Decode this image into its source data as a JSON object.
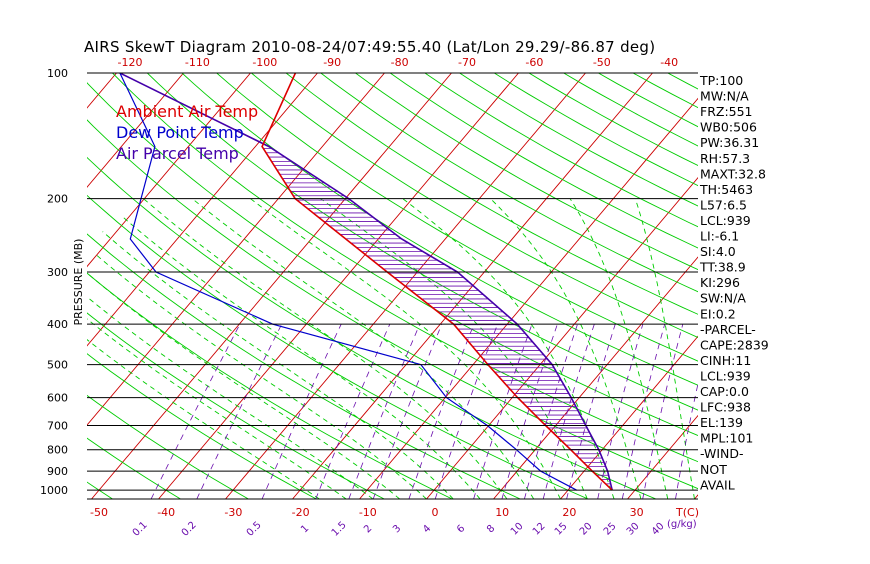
{
  "chart_data": {
    "type": "line",
    "title": "AIRS SkewT Diagram 2010-08-24/07:49:55.40 (Lat/Lon 29.29/-86.87 deg)",
    "ylabel": "PRESSURE (MB)",
    "x_unit_label": "T(C)",
    "mixing_unit_label": "(g/kg)",
    "pressure_range": [
      1050,
      100
    ],
    "pressure_ticks": [
      100,
      200,
      300,
      400,
      500,
      600,
      700,
      800,
      900,
      1000
    ],
    "top_temp_ticks": [
      -120,
      -110,
      -100,
      -90,
      -80,
      -70,
      -60,
      -50,
      -40
    ],
    "bottom_temp_ticks": [
      -50,
      -40,
      -30,
      -20,
      -10,
      0,
      10,
      20,
      30
    ],
    "mixing_ratio_ticks": [
      "0.1",
      "0.2",
      "0.5",
      "1",
      "1.5",
      "2",
      "3",
      "4",
      "6",
      "8",
      "10",
      "12",
      "15",
      "20",
      "25",
      "30",
      "40"
    ],
    "legend": [
      {
        "label": "Ambient Air Temp",
        "color": "#dd0000"
      },
      {
        "label": "Dew Point Temp",
        "color": "#0000cc"
      },
      {
        "label": "Air Parcel Temp",
        "color": "#4400aa"
      }
    ],
    "series": [
      {
        "name": "Ambient Air Temp",
        "color": "#dd0000",
        "points": [
          {
            "p": 1000,
            "t": 26.6
          },
          {
            "p": 900,
            "t": 21.2
          },
          {
            "p": 800,
            "t": 15.3
          },
          {
            "p": 700,
            "t": 8.5
          },
          {
            "p": 600,
            "t": 0.8
          },
          {
            "p": 500,
            "t": -7.8
          },
          {
            "p": 400,
            "t": -18.0
          },
          {
            "p": 300,
            "t": -34.5
          },
          {
            "p": 200,
            "t": -57.5
          },
          {
            "p": 150,
            "t": -69.0
          },
          {
            "p": 100,
            "t": -73.3
          }
        ]
      },
      {
        "name": "Dew Point Temp",
        "color": "#0000cc",
        "points": [
          {
            "p": 1000,
            "t": 21.3
          },
          {
            "p": 900,
            "t": 13.5
          },
          {
            "p": 800,
            "t": 7.2
          },
          {
            "p": 700,
            "t": -0.2
          },
          {
            "p": 600,
            "t": -9.8
          },
          {
            "p": 500,
            "t": -17.8
          },
          {
            "p": 400,
            "t": -45.0
          },
          {
            "p": 300,
            "t": -69.0
          },
          {
            "p": 250,
            "t": -77.0
          },
          {
            "p": 150,
            "t": -85.0
          },
          {
            "p": 100,
            "t": -99.5
          }
        ]
      },
      {
        "name": "Air Parcel Temp",
        "color": "#4400aa",
        "points": [
          {
            "p": 1000,
            "t": 26.6
          },
          {
            "p": 900,
            "t": 23.5
          },
          {
            "p": 800,
            "t": 19.5
          },
          {
            "p": 700,
            "t": 14.5
          },
          {
            "p": 600,
            "t": 8.8
          },
          {
            "p": 500,
            "t": 1.8
          },
          {
            "p": 400,
            "t": -8.5
          },
          {
            "p": 300,
            "t": -24.0
          },
          {
            "p": 250,
            "t": -36.5
          },
          {
            "p": 200,
            "t": -49.5
          },
          {
            "p": 150,
            "t": -68.0
          },
          {
            "p": 100,
            "t": -99.5
          }
        ]
      }
    ],
    "grid": true
  },
  "stats": [
    "TP:100",
    "MW:N/A",
    "FRZ:551",
    "WB0:506",
    "PW:36.31",
    "RH:57.3",
    "MAXT:32.8",
    "TH:5463",
    "L57:6.5",
    "LCL:939",
    "LI:-6.1",
    "SI:4.0",
    "TT:38.9",
    "KI:296",
    "SW:N/A",
    "EI:0.2",
    "-PARCEL-",
    "CAPE:2839",
    "CINH:11",
    "LCL:939",
    "CAP:0.0",
    "LFC:938",
    "EL:139",
    "MPL:101",
    "-WIND-",
    "NOT",
    "AVAIL"
  ],
  "colors": {
    "isotherm": "#cc0000",
    "dry_adiabat": "#00cc00",
    "moist_adiabat": "#00cc00",
    "mixing_ratio": "#6a0dad",
    "cape_hatch": "#6a0dad",
    "pressure_line": "#000000"
  }
}
